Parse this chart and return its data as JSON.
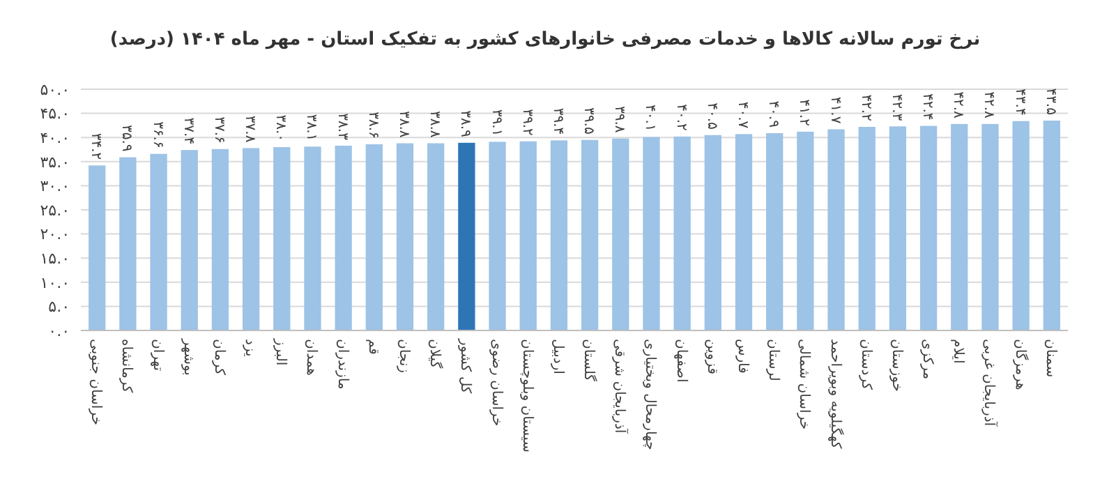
{
  "chart_data": {
    "type": "bar",
    "title": "نرخ تورم سالانه کالاها و خدمات مصرفی خانوارهای کشور به تفکیک استان - مهر ماه ۱۴۰۴ (درصد)",
    "categories": [
      "خراسان جنوبی",
      "کرمانشاه",
      "تهران",
      "بوشهر",
      "کرمان",
      "یزد",
      "البرز",
      "همدان",
      "مازندران",
      "قم",
      "زنجان",
      "گیلان",
      "کل کشور",
      "خراسان رضوی",
      "سیستان وبلوچستان",
      "اردبیل",
      "گلستان",
      "آذربایجان شرقی",
      "چهارمحال وبختیاری",
      "اصفهان",
      "قزوین",
      "فارس",
      "لرستان",
      "خراسان شمالی",
      "کهگیلویه وبویراحمد",
      "کردستان",
      "خوزستان",
      "مرکزی",
      "ایلام",
      "آذربایجان غربی",
      "هرمزگان",
      "سمنان"
    ],
    "values": [
      34.2,
      35.9,
      36.6,
      37.4,
      37.6,
      37.8,
      38.0,
      38.1,
      38.3,
      38.6,
      38.8,
      38.8,
      38.9,
      39.1,
      39.2,
      39.4,
      39.5,
      39.8,
      40.1,
      40.2,
      40.5,
      40.7,
      40.9,
      41.2,
      41.7,
      42.2,
      42.3,
      42.4,
      42.8,
      42.8,
      43.4,
      43.5
    ],
    "value_labels": [
      "۳۴.۲",
      "۳۵.۹",
      "۳۶.۶",
      "۳۷.۴",
      "۳۷.۶",
      "۳۷.۸",
      "۳۸.۰",
      "۳۸.۱",
      "۳۸.۳",
      "۳۸.۶",
      "۳۸.۸",
      "۳۸.۸",
      "۳۸.۹",
      "۳۹.۱",
      "۳۹.۲",
      "۳۹.۴",
      "۳۹.۵",
      "۳۹.۸",
      "۴۰.۱",
      "۴۰.۲",
      "۴۰.۵",
      "۴۰.۷",
      "۴۰.۹",
      "۴۱.۲",
      "۴۱.۷",
      "۴۲.۲",
      "۴۲.۳",
      "۴۲.۴",
      "۴۲.۸",
      "۴۲.۸",
      "۴۳.۴",
      "۴۳.۵"
    ],
    "colors": [
      "#9dc3e6",
      "#9dc3e6",
      "#9dc3e6",
      "#9dc3e6",
      "#9dc3e6",
      "#9dc3e6",
      "#9dc3e6",
      "#9dc3e6",
      "#9dc3e6",
      "#9dc3e6",
      "#9dc3e6",
      "#9dc3e6",
      "#2e75b6",
      "#9dc3e6",
      "#9dc3e6",
      "#9dc3e6",
      "#9dc3e6",
      "#9dc3e6",
      "#9dc3e6",
      "#9dc3e6",
      "#9dc3e6",
      "#9dc3e6",
      "#9dc3e6",
      "#9dc3e6",
      "#9dc3e6",
      "#9dc3e6",
      "#9dc3e6",
      "#9dc3e6",
      "#9dc3e6",
      "#9dc3e6",
      "#9dc3e6",
      "#9dc3e6"
    ],
    "ylim": [
      0,
      50
    ],
    "yticks": [
      {
        "value": 0,
        "label": "۰.۰"
      },
      {
        "value": 5,
        "label": "۵.۰"
      },
      {
        "value": 10,
        "label": "۱۰.۰"
      },
      {
        "value": 15,
        "label": "۱۵.۰"
      },
      {
        "value": 20,
        "label": "۲۰.۰"
      },
      {
        "value": 25,
        "label": "۲۵.۰"
      },
      {
        "value": 30,
        "label": "۳۰.۰"
      },
      {
        "value": 35,
        "label": "۳۵.۰"
      },
      {
        "value": 40,
        "label": "۴۰.۰"
      },
      {
        "value": 45,
        "label": "۴۵.۰"
      },
      {
        "value": 50,
        "label": "۵۰.۰"
      }
    ],
    "grid": "y"
  }
}
